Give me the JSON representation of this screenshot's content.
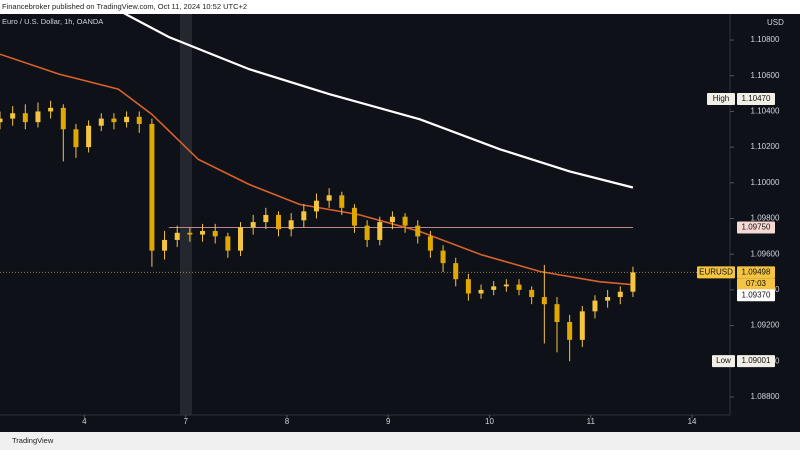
{
  "header": {
    "publisher": "Financebroker published on TradingView.com, Oct 11, 2024 10:52 UTC+2",
    "symbol": "Euro / U.S. Dollar, 1h, OANDA",
    "currency": "USD"
  },
  "footer": {
    "brand": "TradingView"
  },
  "chart_data": {
    "type": "candlestick",
    "color": "#f5c542",
    "x": [
      0,
      3,
      6,
      9,
      12,
      15,
      18,
      21,
      24,
      27,
      30,
      33,
      36,
      39,
      42,
      45,
      48,
      51,
      54,
      57,
      60,
      63,
      66,
      69,
      72,
      75,
      78,
      81,
      84,
      87,
      90,
      93,
      96,
      99,
      102,
      105,
      108,
      111,
      114,
      117,
      120,
      123,
      126,
      129,
      132,
      135,
      138,
      141,
      144,
      147,
      150
    ],
    "open": [
      1.1034,
      1.1036,
      1.1039,
      1.1034,
      1.104,
      1.1042,
      1.103,
      1.102,
      1.1032,
      1.1036,
      1.1034,
      1.1037,
      1.1033,
      1.0962,
      1.0968,
      1.0972,
      1.0971,
      1.0973,
      1.097,
      1.0962,
      1.0975,
      1.0978,
      1.0982,
      1.0974,
      1.0979,
      1.0984,
      1.099,
      1.0993,
      1.0986,
      1.0976,
      1.0968,
      1.0978,
      1.0981,
      1.0976,
      1.097,
      1.0962,
      1.0955,
      1.0946,
      1.0938,
      1.094,
      1.0942,
      1.0943,
      1.094,
      1.0936,
      1.0932,
      1.0922,
      1.0912,
      1.0928,
      1.0934,
      1.0936,
      1.0939
    ],
    "high": [
      1.104,
      1.1043,
      1.1044,
      1.1045,
      1.1046,
      1.1044,
      1.1033,
      1.1035,
      1.1039,
      1.1039,
      1.104,
      1.104,
      1.1036,
      1.0973,
      1.0976,
      1.0975,
      1.0977,
      1.0977,
      1.0972,
      1.0978,
      1.0982,
      1.0986,
      1.0984,
      1.0983,
      1.0988,
      1.0994,
      1.0997,
      1.0995,
      1.0988,
      1.0979,
      1.0981,
      1.0984,
      1.0983,
      1.0979,
      1.0973,
      1.0965,
      1.0958,
      1.0949,
      1.0943,
      1.0945,
      1.0946,
      1.0946,
      1.0942,
      1.0954,
      1.0936,
      1.0926,
      1.0931,
      1.0937,
      1.094,
      1.0942,
      1.0953
    ],
    "low": [
      1.103,
      1.1032,
      1.103,
      1.1031,
      1.1036,
      1.1012,
      1.1014,
      1.1017,
      1.1029,
      1.103,
      1.1031,
      1.1028,
      1.0953,
      1.0957,
      1.0964,
      1.0967,
      1.0967,
      1.0966,
      1.0958,
      1.0959,
      1.0971,
      1.0974,
      1.097,
      1.097,
      1.0975,
      1.098,
      1.0986,
      1.0982,
      1.0972,
      1.0964,
      1.0965,
      1.0974,
      1.0972,
      1.0966,
      1.0958,
      1.095,
      1.0942,
      1.0934,
      1.0935,
      1.0937,
      1.0939,
      1.0937,
      1.0932,
      1.091,
      1.0905,
      1.09,
      1.0908,
      1.0924,
      1.093,
      1.0932,
      1.0936
    ],
    "close": [
      1.1036,
      1.1039,
      1.1034,
      1.104,
      1.1042,
      1.103,
      1.102,
      1.1032,
      1.1036,
      1.1034,
      1.1037,
      1.1033,
      1.0962,
      1.0968,
      1.0972,
      1.0971,
      1.0973,
      1.097,
      1.0962,
      1.0975,
      1.0978,
      1.0982,
      1.0974,
      1.0979,
      1.0984,
      1.099,
      1.0993,
      1.0986,
      1.0976,
      1.0968,
      1.0978,
      1.0981,
      1.0976,
      1.097,
      1.0962,
      1.0955,
      1.0946,
      1.0938,
      1.094,
      1.0942,
      1.0943,
      1.094,
      1.0936,
      1.0932,
      1.0922,
      1.0912,
      1.0928,
      1.0934,
      1.0936,
      1.0939,
      1.09498
    ],
    "lines": [
      {
        "color": "#ffffff",
        "x": [
          28.4,
          40,
          59,
          78,
          99.5,
          118.5,
          135,
          150
        ],
        "values": [
          1.10963,
          1.10817,
          1.10637,
          1.10497,
          1.10356,
          1.10188,
          1.10064,
          1.09974
        ]
      },
      {
        "color": "#d9622b",
        "x": [
          0,
          14,
          28,
          36,
          47,
          59,
          71,
          85,
          99.5,
          114,
          128,
          142,
          150
        ],
        "values": [
          1.10721,
          1.10609,
          1.10525,
          1.10384,
          1.10131,
          1.09991,
          1.09879,
          1.09822,
          1.09727,
          1.09598,
          1.09503,
          1.09446,
          1.09429
        ]
      }
    ],
    "levels": [
      {
        "value": 1.0975,
        "color": "#b9878a"
      }
    ],
    "markers": [
      {
        "name": "High",
        "value": {
          "value": 1.1047,
          "label": "1.10470"
        },
        "color": "#f2f0e6"
      },
      {
        "value": {
          "value": 1.0975,
          "label": "1.09750"
        },
        "color": "#f7d9d4"
      },
      {
        "name": "EURUSD",
        "value": {
          "value": 1.09498,
          "label": "1.09498"
        },
        "color": "#f5c542",
        "countdown": "07:03"
      },
      {
        "value": {
          "value": 1.0937,
          "label": "1.09370"
        },
        "color": "#ffffff"
      },
      {
        "name": "Low",
        "value": {
          "value": 1.09001,
          "label": "1.09001"
        },
        "color": "#f2f0e6"
      }
    ],
    "xlim": [
      0,
      173
    ],
    "xticks": [
      {
        "value": 20,
        "label": "4"
      },
      {
        "value": 44,
        "label": "7"
      },
      {
        "value": 68,
        "label": "8"
      },
      {
        "value": 92,
        "label": "9"
      },
      {
        "value": 116,
        "label": "10"
      },
      {
        "value": 140,
        "label": "11"
      },
      {
        "value": 164,
        "label": "14"
      }
    ],
    "ylim": [
      1.08699,
      1.10946
    ],
    "yticks": [
      {
        "value": 1.108,
        "label": "1.10800"
      },
      {
        "value": 1.106,
        "label": "1.10600"
      },
      {
        "value": 1.104,
        "label": "1.10400"
      },
      {
        "value": 1.102,
        "label": "1.10200"
      },
      {
        "value": 1.1,
        "label": "1.10000"
      },
      {
        "value": 1.098,
        "label": "1.09800"
      },
      {
        "value": 1.096,
        "label": "1.09600"
      },
      {
        "value": 1.094,
        "label": "1.09400"
      },
      {
        "value": 1.092,
        "label": "1.09200"
      },
      {
        "value": 1.09,
        "label": "1.09000"
      },
      {
        "value": 1.088,
        "label": "1.08800"
      }
    ],
    "grid": false
  }
}
